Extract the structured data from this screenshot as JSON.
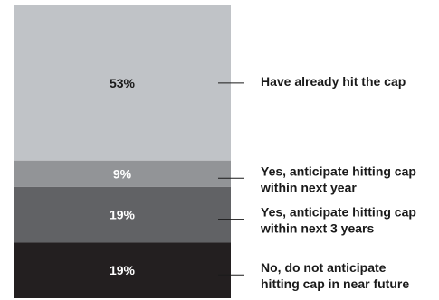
{
  "chart_data": {
    "type": "bar",
    "stacked": true,
    "title": "",
    "xlabel": "",
    "ylabel": "",
    "ylim": [
      0,
      100
    ],
    "grid": false,
    "legend_placement": "right",
    "segments": [
      {
        "category": "Have already hit the cap",
        "value": 53,
        "label": "53%",
        "legend_lines": [
          "Have already hit the cap"
        ],
        "color": "#c0c3c7",
        "label_color": "#1a1a1a"
      },
      {
        "category": "Yes, anticipate hitting cap within next year",
        "value": 9,
        "label": "9%",
        "legend_lines": [
          "Yes, anticipate hitting cap",
          "within next year"
        ],
        "color": "#929497",
        "label_color": "#ffffff"
      },
      {
        "category": "Yes, anticipate hitting cap within next 3 years",
        "value": 19,
        "label": "19%",
        "legend_lines": [
          "Yes, anticipate hitting cap",
          "within next 3 years"
        ],
        "color": "#616265",
        "label_color": "#ffffff"
      },
      {
        "category": "No, do not anticipate hitting cap in near future",
        "value": 19,
        "label": "19%",
        "legend_lines": [
          "No, do not anticipate",
          "hitting cap in near future"
        ],
        "color": "#231f20",
        "label_color": "#ffffff"
      }
    ]
  }
}
